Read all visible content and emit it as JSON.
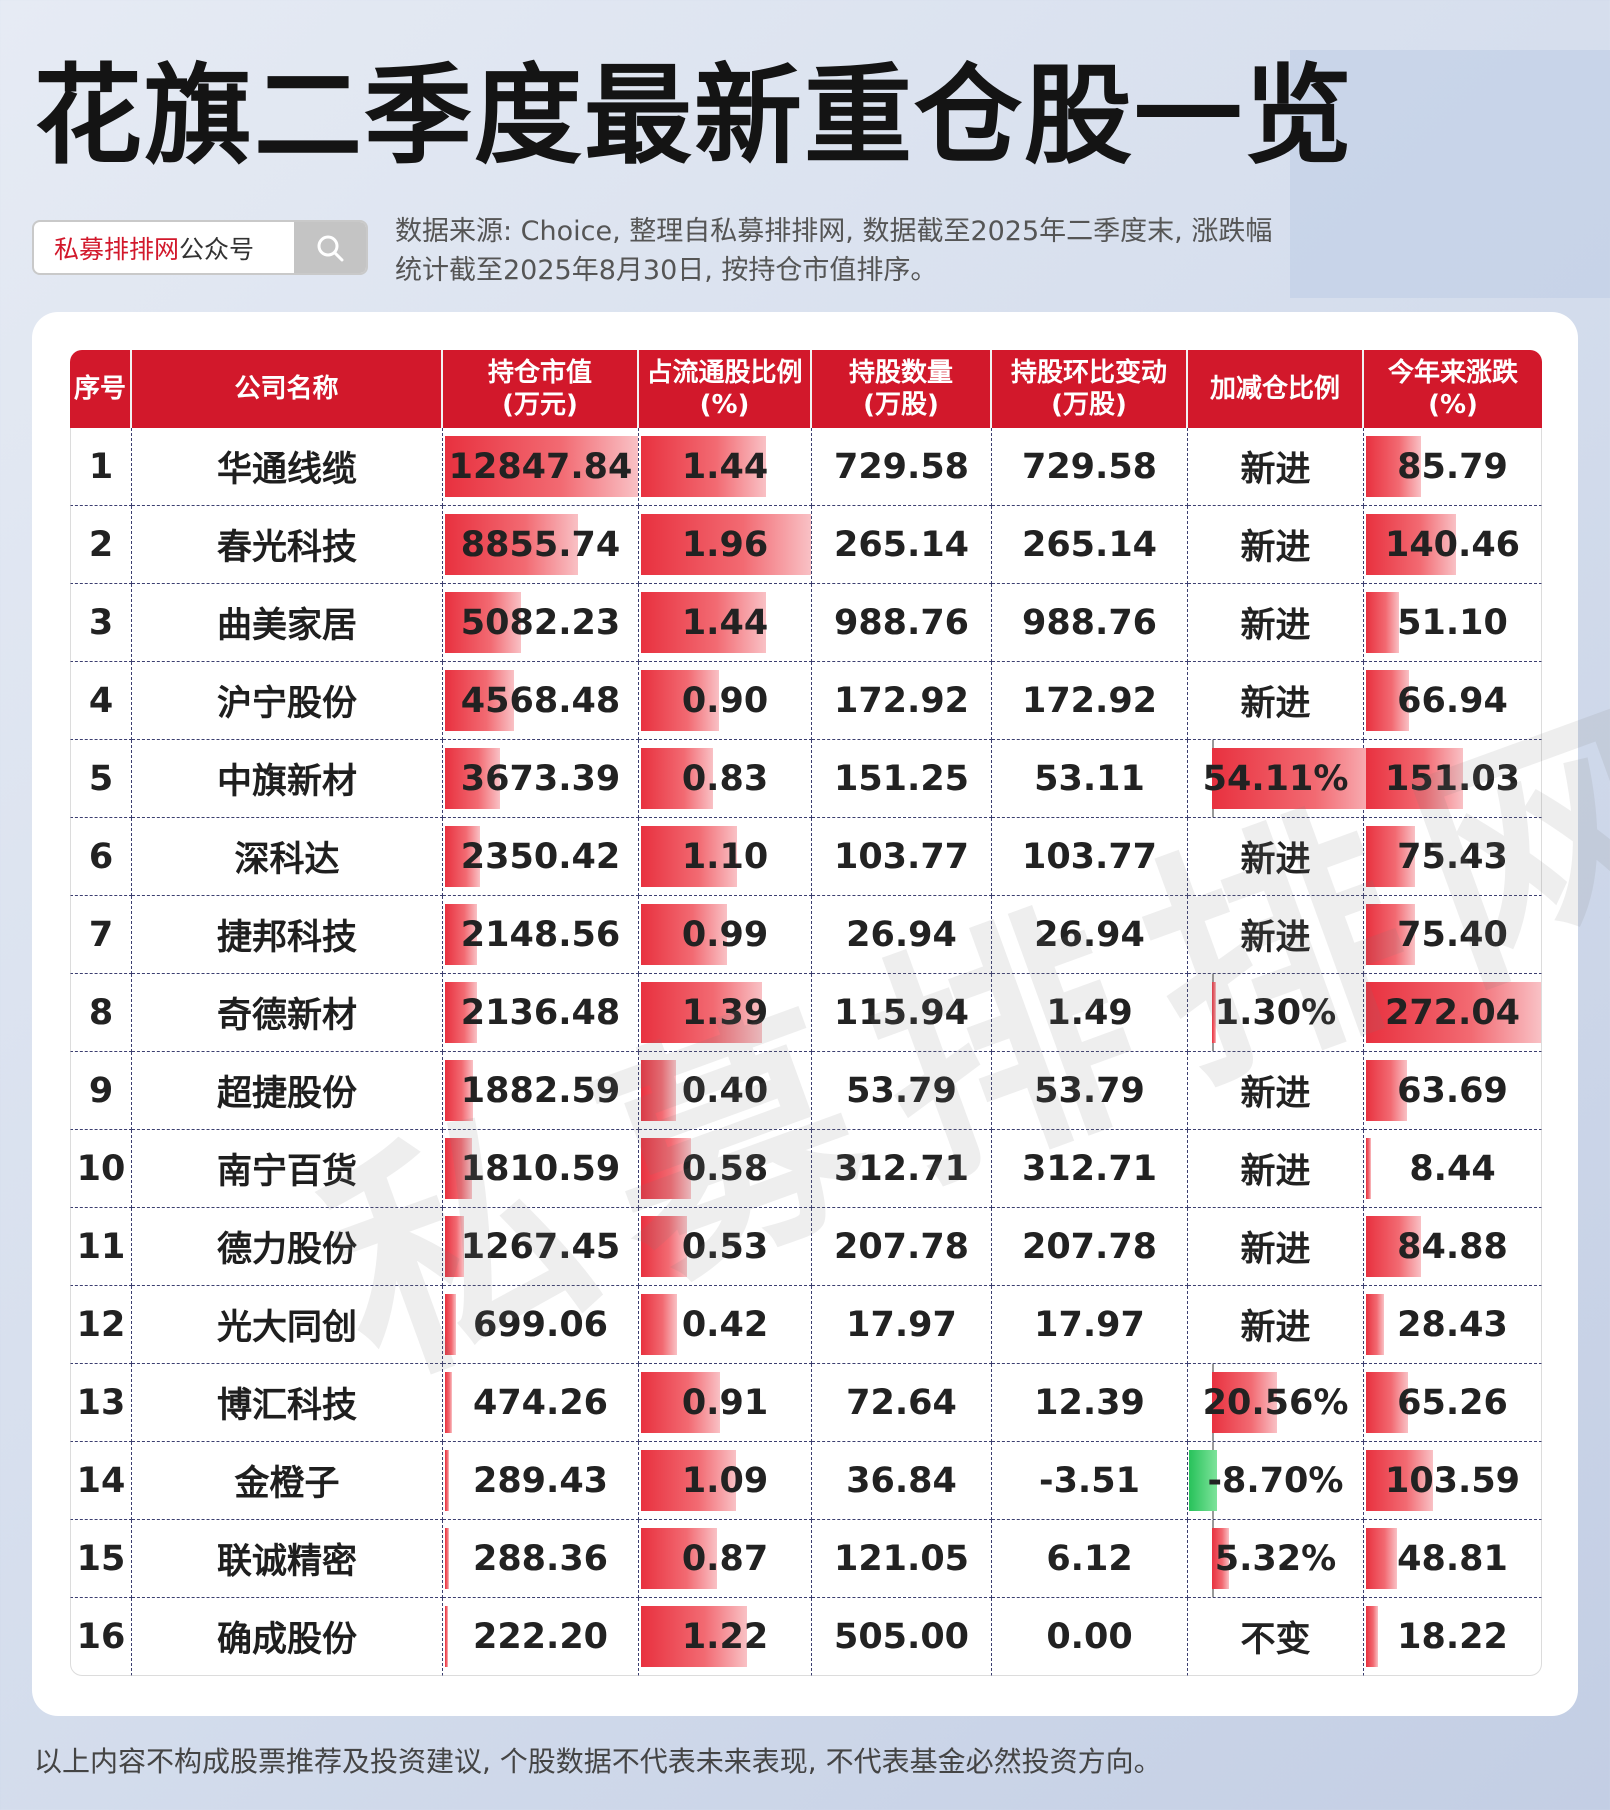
{
  "title": "花旗二季度最新重仓股一览",
  "search": {
    "brand": "私募排排网",
    "suffix": "公众号"
  },
  "source_note": "数据来源: Choice, 整理自私募排排网, 数据截至2025年二季度末, 涨跌幅统计截至2025年8月30日, 按持仓市值排序。",
  "headers": {
    "rank": "序号",
    "name": "公司名称",
    "mv": "持仓市值\n(万元)",
    "float_ratio": "占流通股比例\n(%)",
    "shares": "持股数量\n(万股)",
    "change": "持股环比变动\n(万股)",
    "add_ratio": "加减仓比例",
    "ytd": "今年来涨跌\n(%)"
  },
  "rows": [
    {
      "rank": "1",
      "name": "华通线缆",
      "mv": "12847.84",
      "float_ratio": "1.44",
      "shares": "729.58",
      "change": "729.58",
      "add_ratio": "新进",
      "ytd": "85.79"
    },
    {
      "rank": "2",
      "name": "春光科技",
      "mv": "8855.74",
      "float_ratio": "1.96",
      "shares": "265.14",
      "change": "265.14",
      "add_ratio": "新进",
      "ytd": "140.46"
    },
    {
      "rank": "3",
      "name": "曲美家居",
      "mv": "5082.23",
      "float_ratio": "1.44",
      "shares": "988.76",
      "change": "988.76",
      "add_ratio": "新进",
      "ytd": "51.10"
    },
    {
      "rank": "4",
      "name": "沪宁股份",
      "mv": "4568.48",
      "float_ratio": "0.90",
      "shares": "172.92",
      "change": "172.92",
      "add_ratio": "新进",
      "ytd": "66.94"
    },
    {
      "rank": "5",
      "name": "中旗新材",
      "mv": "3673.39",
      "float_ratio": "0.83",
      "shares": "151.25",
      "change": "53.11",
      "add_ratio": "54.11%",
      "ytd": "151.03"
    },
    {
      "rank": "6",
      "name": "深科达",
      "mv": "2350.42",
      "float_ratio": "1.10",
      "shares": "103.77",
      "change": "103.77",
      "add_ratio": "新进",
      "ytd": "75.43"
    },
    {
      "rank": "7",
      "name": "捷邦科技",
      "mv": "2148.56",
      "float_ratio": "0.99",
      "shares": "26.94",
      "change": "26.94",
      "add_ratio": "新进",
      "ytd": "75.40"
    },
    {
      "rank": "8",
      "name": "奇德新材",
      "mv": "2136.48",
      "float_ratio": "1.39",
      "shares": "115.94",
      "change": "1.49",
      "add_ratio": "1.30%",
      "ytd": "272.04"
    },
    {
      "rank": "9",
      "name": "超捷股份",
      "mv": "1882.59",
      "float_ratio": "0.40",
      "shares": "53.79",
      "change": "53.79",
      "add_ratio": "新进",
      "ytd": "63.69"
    },
    {
      "rank": "10",
      "name": "南宁百货",
      "mv": "1810.59",
      "float_ratio": "0.58",
      "shares": "312.71",
      "change": "312.71",
      "add_ratio": "新进",
      "ytd": "8.44"
    },
    {
      "rank": "11",
      "name": "德力股份",
      "mv": "1267.45",
      "float_ratio": "0.53",
      "shares": "207.78",
      "change": "207.78",
      "add_ratio": "新进",
      "ytd": "84.88"
    },
    {
      "rank": "12",
      "name": "光大同创",
      "mv": "699.06",
      "float_ratio": "0.42",
      "shares": "17.97",
      "change": "17.97",
      "add_ratio": "新进",
      "ytd": "28.43"
    },
    {
      "rank": "13",
      "name": "博汇科技",
      "mv": "474.26",
      "float_ratio": "0.91",
      "shares": "72.64",
      "change": "12.39",
      "add_ratio": "20.56%",
      "ytd": "65.26"
    },
    {
      "rank": "14",
      "name": "金橙子",
      "mv": "289.43",
      "float_ratio": "1.09",
      "shares": "36.84",
      "change": "-3.51",
      "add_ratio": "-8.70%",
      "ytd": "103.59"
    },
    {
      "rank": "15",
      "name": "联诚精密",
      "mv": "288.36",
      "float_ratio": "0.87",
      "shares": "121.05",
      "change": "6.12",
      "add_ratio": "5.32%",
      "ytd": "48.81"
    },
    {
      "rank": "16",
      "name": "确成股份",
      "mv": "222.20",
      "float_ratio": "1.22",
      "shares": "505.00",
      "change": "0.00",
      "add_ratio": "不变",
      "ytd": "18.22"
    }
  ],
  "watermark": "私募排排网",
  "footer": "以上内容不构成股票推荐及投资建议, 个股数据不代表未来表现, 不代表基金必然投资方向。",
  "colors": {
    "accent": "#d2182b",
    "bar_pos": "#e8313f",
    "bar_neg": "#27c25a"
  },
  "icons": {
    "search": "search-icon"
  }
}
